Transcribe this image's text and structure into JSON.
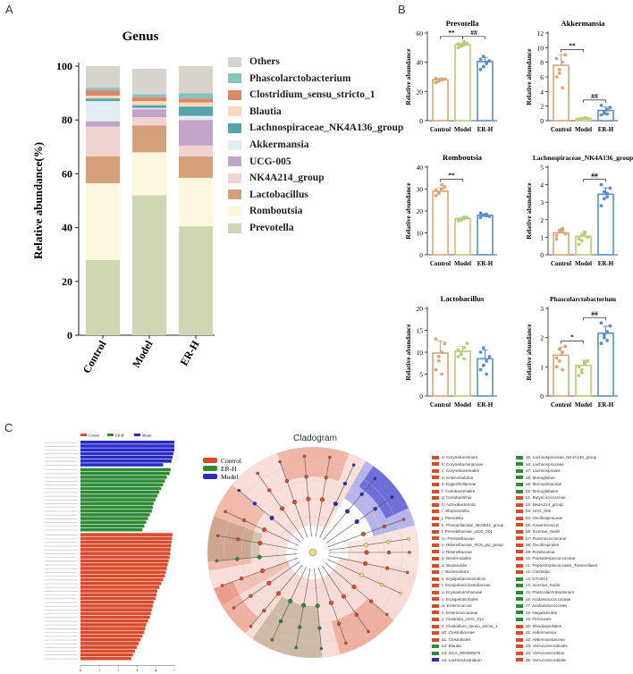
{
  "panels": {
    "a": "A",
    "b": "B",
    "c": "C"
  },
  "colors": {
    "control": "#d94b2b",
    "model": "#2a2ac8",
    "er_h": "#2e8b36",
    "bar_control": "#d9a67a",
    "bar_model": "#b8cc7a",
    "bar_erh": "#5b8fc7"
  },
  "panelA": {
    "chart_data": {
      "type": "bar",
      "title": "Genus",
      "ylabel": "Relative abundance(%)",
      "xlabel": "",
      "ylim": [
        0,
        100
      ],
      "yticks": [
        "0",
        "20",
        "40",
        "60",
        "80",
        "100"
      ],
      "categories": [
        "Control",
        "Model",
        "ER-H"
      ],
      "stacked": true,
      "series": [
        {
          "name": "Prevotella",
          "color": "#cfd6b3",
          "values": [
            28,
            52,
            40.5
          ]
        },
        {
          "name": "Romboutsia",
          "color": "#fcf8df",
          "values": [
            28.5,
            16,
            18
          ]
        },
        {
          "name": "Lactobacillus",
          "color": "#d4a07a",
          "values": [
            10,
            10,
            8
          ]
        },
        {
          "name": "NK4A214_group",
          "color": "#efd4d0",
          "values": [
            11,
            3,
            4
          ]
        },
        {
          "name": "UCG-005",
          "color": "#c2a3c9",
          "values": [
            2,
            3,
            9.5
          ]
        },
        {
          "name": "Akkermansia",
          "color": "#e3eef3",
          "values": [
            7.5,
            0.5,
            1.5
          ]
        },
        {
          "name": "Lachnospiraceae_NK4A136_group",
          "color": "#56a3ae",
          "values": [
            1,
            1,
            3.5
          ]
        },
        {
          "name": "Blautia",
          "color": "#f9d9bd",
          "values": [
            1,
            1.5,
            1.5
          ]
        },
        {
          "name": "Clostridium_sensu_stricto_1",
          "color": "#db8866",
          "values": [
            2,
            1.5,
            1.5
          ]
        },
        {
          "name": "Phascolarctobacterium",
          "color": "#86c4c0",
          "values": [
            1,
            1,
            2
          ]
        },
        {
          "name": "Others",
          "color": "#d7d4cb",
          "values": [
            8,
            9.5,
            10
          ]
        }
      ],
      "legend_order": [
        "Others",
        "Phascolarctobacterium",
        "Clostridium_sensu_stricto_1",
        "Blautia",
        "Lachnospiraceae_NK4A136_group",
        "Akkermansia",
        "UCG-005",
        "NK4A214_group",
        "Lactobacillus",
        "Romboutsia",
        "Prevotella"
      ]
    }
  },
  "panelB": {
    "ylabel": "Relative abundance",
    "groups": [
      "Control",
      "Model",
      "ER-H"
    ],
    "chart_data": [
      {
        "type": "bar",
        "title": "Prevotella",
        "ylim": [
          0,
          60
        ],
        "yticks": [
          0,
          20,
          40,
          60
        ],
        "values": [
          28,
          52,
          40.5
        ],
        "points": [
          [
            26,
            27.5,
            28,
            28.5,
            29,
            27,
            28.5
          ],
          [
            50,
            51.5,
            52,
            53,
            52.5,
            51,
            54
          ],
          [
            35,
            37,
            39,
            41,
            42,
            44,
            40
          ]
        ],
        "sig": [
          {
            "from": 0,
            "to": 1,
            "label": "**"
          },
          {
            "from": 1,
            "to": 2,
            "label": "##"
          }
        ]
      },
      {
        "type": "bar",
        "title": "Akkermansia",
        "ylim": [
          0,
          12
        ],
        "yticks": [
          0,
          2,
          4,
          6,
          8,
          10,
          12
        ],
        "values": [
          7.6,
          0.3,
          1.4
        ],
        "points": [
          [
            6,
            7,
            8,
            9,
            8.5,
            6.5,
            4.5
          ],
          [
            0.2,
            0.3,
            0.4,
            0.3,
            0.2,
            0.3,
            0.35
          ],
          [
            0.8,
            1.2,
            1.5,
            1.8,
            2.1,
            1,
            0.9
          ]
        ],
        "sig": [
          {
            "from": 0,
            "to": 1,
            "label": "**"
          },
          {
            "from": 1,
            "to": 2,
            "label": "##"
          }
        ]
      },
      {
        "type": "bar",
        "title": "Romboutsia",
        "ylim": [
          0,
          40
        ],
        "yticks": [
          0,
          10,
          20,
          30,
          40
        ],
        "values": [
          29,
          16.5,
          18
        ],
        "points": [
          [
            27,
            28,
            30,
            31,
            29.5,
            28.5,
            32
          ],
          [
            15.5,
            16,
            16.5,
            17,
            16.2,
            15.8,
            17.2
          ],
          [
            17,
            18,
            18.5,
            17.5,
            19,
            18.2,
            17.8
          ]
        ],
        "sig": [
          {
            "from": 0,
            "to": 1,
            "label": "**"
          }
        ]
      },
      {
        "type": "bar",
        "title": "Lachnospiraceae_NK4A136_group",
        "ylim": [
          0,
          5
        ],
        "yticks": [
          0,
          1,
          2,
          3,
          4,
          5
        ],
        "values": [
          1.25,
          1.05,
          3.45
        ],
        "points": [
          [
            1.1,
            1.3,
            1.5,
            1.2,
            0.9,
            1.4,
            1.35
          ],
          [
            0.6,
            0.8,
            1.2,
            1,
            0.9,
            1.1,
            1.3
          ],
          [
            2.8,
            3.2,
            3.5,
            3.8,
            4,
            3.6,
            3.3
          ]
        ],
        "sig": [
          {
            "from": 1,
            "to": 2,
            "label": "##"
          }
        ]
      },
      {
        "type": "bar",
        "title": "Lactobacillus",
        "ylim": [
          0,
          20
        ],
        "yticks": [
          0,
          5,
          10,
          15,
          20
        ],
        "values": [
          9.8,
          10.2,
          8.5
        ],
        "points": [
          [
            6,
            8,
            10,
            12,
            13,
            9,
            5
          ],
          [
            9,
            10,
            11,
            12,
            10.5,
            9.5,
            8.5
          ],
          [
            6,
            7,
            8,
            9,
            10,
            11,
            5
          ]
        ],
        "sig": []
      },
      {
        "type": "bar",
        "title": "Phascolarctobacterium",
        "ylim": [
          0,
          3
        ],
        "yticks": [
          0,
          1,
          2,
          3
        ],
        "values": [
          1.4,
          1.05,
          2.15
        ],
        "points": [
          [
            1,
            1.2,
            1.5,
            1.7,
            1.3,
            1.6,
            0.9
          ],
          [
            0.7,
            0.9,
            1.1,
            1.2,
            1,
            0.8,
            1.15
          ],
          [
            1.8,
            2,
            2.2,
            2.4,
            2.5,
            2.1,
            1.9
          ]
        ],
        "sig": [
          {
            "from": 0,
            "to": 1,
            "label": "*"
          },
          {
            "from": 1,
            "to": 2,
            "label": "##"
          }
        ]
      }
    ]
  },
  "panelC": {
    "lda": {
      "xlabel": "LDA SCORE (log 10)",
      "xticks": [
        "0",
        "1",
        "2",
        "3",
        "4",
        "5",
        "6"
      ],
      "legend": [
        "Control",
        "ER-H",
        "Model"
      ]
    },
    "cladogram": {
      "title": "Cladogram",
      "legend": [
        "Control",
        "ER-H",
        "Model"
      ]
    },
    "taxa_left": [
      "a: Corynebacterium",
      "b: Corynebacteriaceae",
      "c: Corynebacteriales",
      "d: Enterorhabdus",
      "e: Eggerthellaceae",
      "f: Coriobacteriales",
      "g: Coriobacteriia",
      "h: Actinobacteriota",
      "i: Alloprevotella",
      "j: Prevotella",
      "k: Prevotellaceae_NK3B31_group",
      "l: Prevotellaceae_UCG_001",
      "m: Prevotellaceae",
      "n: Rikenellaceae_RC9_gut_group",
      "o: Rikenellaceae",
      "p: Bacteroidales",
      "q: Bacteroidia",
      "r: Bacteroidota",
      "s: Erysipelatoclostridium",
      "t: Erysipelatoclostridiaceae",
      "u: Erysipelotrichaceae",
      "v: Erysipelotrichales",
      "w: Enterococcus",
      "x: Enterococcaceae",
      "y: Clostridia_UCG_014",
      "z: Clostridium_sensu_stricto_1",
      "a0: Clostridiaceae",
      "a1: Clostridiales",
      "a2: Blautia",
      "a3: GCA_900066575",
      "a4: Lachnoclostridium"
    ],
    "taxa_left_groups": [
      "c",
      "c",
      "c",
      "c",
      "c",
      "c",
      "c",
      "c",
      "c",
      "c",
      "c",
      "c",
      "c",
      "c",
      "c",
      "c",
      "c",
      "c",
      "c",
      "c",
      "c",
      "c",
      "c",
      "c",
      "c",
      "c",
      "c",
      "c",
      "e",
      "e",
      "m"
    ],
    "taxa_right": [
      "a5: Lachnospiraceae_NK4A136_group",
      "a6: Lachnospiraceae",
      "a7: Lachnospirales",
      "a8: Monoglobus",
      "a9: Monoglobaceae",
      "b0: Monoglobales",
      "b1: Butyricicoccaceae",
      "b2: NK4A214_group",
      "b3: UCG_005",
      "b4: Oscillospiraceae",
      "b5: Anaerotruncus",
      "b6: Incertae_Sedis",
      "b7: Ruminococcaceae",
      "b8: Oscillospirales",
      "b9: Romboutsia",
      "c0: Peptostreptococcaceae",
      "c1: Peptostreptococcales_Tissierellales",
      "c2: Clostridia",
      "c3: DTU014",
      "c4: Incertae_Sedis",
      "c5: Phascolarctobacterium",
      "c6: Acidaminococcaceae",
      "c7: Acidaminococcales",
      "c8: Negativicutes",
      "c9: Firmicutes",
      "d0: Rhodospirillales",
      "d1: Akkermansia",
      "d2: Akkermansiaceae",
      "d3: Verrucomicrobiales",
      "d4: Verrucomicrobiae",
      "d5: Verrucomicrobiota"
    ],
    "taxa_right_groups": [
      "e",
      "e",
      "e",
      "e",
      "e",
      "e",
      "c",
      "c",
      "c",
      "c",
      "c",
      "c",
      "c",
      "c",
      "c",
      "c",
      "c",
      "c",
      "e",
      "e",
      "e",
      "e",
      "e",
      "e",
      "e",
      "c",
      "c",
      "c",
      "c",
      "c",
      "c"
    ],
    "lda_values": {
      "model": [
        5.1,
        5.05,
        5.0,
        4.95,
        4.9,
        4.85,
        4.4
      ],
      "er_h": [
        4.8,
        4.75,
        4.6,
        4.5,
        4.4,
        4.3,
        4.2,
        4.1,
        4.0,
        3.9,
        3.85,
        3.8,
        3.7,
        3.6,
        3.5,
        3.4,
        3.3
      ],
      "control": [
        4.9,
        4.88,
        4.85,
        4.82,
        4.8,
        4.78,
        4.75,
        4.7,
        4.65,
        4.6,
        4.55,
        4.5,
        4.4,
        4.3,
        4.2,
        4.1,
        4.05,
        4.0,
        3.9,
        3.85,
        3.8,
        3.75,
        3.7,
        3.6,
        3.5,
        3.45,
        3.4,
        3.3,
        3.2,
        3.1,
        3.0,
        2.9,
        2.8,
        2.7
      ]
    }
  }
}
